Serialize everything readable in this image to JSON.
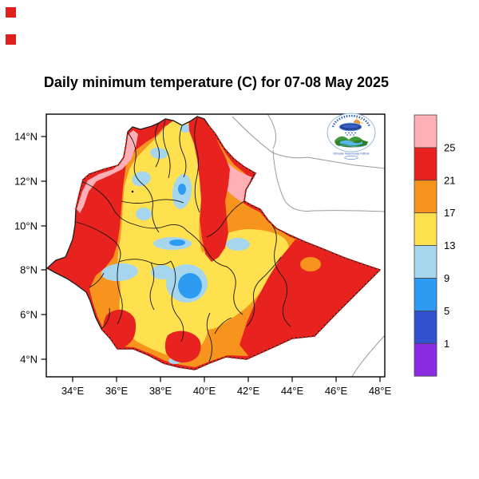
{
  "title": "Daily minimum temperature (C) for 07-08 May 2025",
  "axes": {
    "x_ticks": [
      "34°E",
      "36°E",
      "38°E",
      "40°E",
      "42°E",
      "44°E",
      "46°E",
      "48°E"
    ],
    "y_ticks": [
      "14°N",
      "12°N",
      "10°N",
      "8°N",
      "6°N",
      "4°N"
    ]
  },
  "legend": {
    "labels": [
      "25",
      "21",
      "17",
      "13",
      "9",
      "5",
      "1"
    ],
    "colors": [
      "#ffb0b6",
      "#e8231f",
      "#f7941e",
      "#ffe14f",
      "#a6d6ee",
      "#2e9bf2",
      "#3052cf",
      "#8b2be2"
    ]
  },
  "logo": {
    "caption": "Ethiopian Meteorology Institute"
  },
  "colors": {
    "pink_gt25": "#ffb0b6",
    "red_21_25": "#e8231f",
    "orange_17_21": "#f7941e",
    "yellow_13_17": "#ffe14f",
    "lightblue_9_13": "#a6d6ee",
    "blue_5_9": "#2e9bf2",
    "royal_1_5": "#3052cf",
    "purple_lt1": "#8b2be2",
    "neighbor_border_gray": "#9a9a9a",
    "admin_border_black": "#141414"
  },
  "chart_data": {
    "type": "heatmap",
    "title": "Daily minimum temperature (C) for 07-08 May 2025",
    "variable": "daily minimum temperature",
    "units": "°C",
    "date": "07-08 May 2025",
    "region": "Ethiopia",
    "legend_position": "right",
    "grid": false,
    "x_axis": {
      "ticks": [
        "34°E",
        "36°E",
        "38°E",
        "40°E",
        "42°E",
        "44°E",
        "46°E",
        "48°E"
      ],
      "range": [
        "32.8°E",
        "48.2°E"
      ]
    },
    "y_axis": {
      "ticks": [
        "4°N",
        "6°N",
        "8°N",
        "10°N",
        "12°N",
        "14°N"
      ],
      "range": [
        "3.2°N",
        "15.0°N"
      ]
    },
    "color_scale": [
      {
        "min": 25,
        "max": null,
        "color": "#ffb0b6"
      },
      {
        "min": 21,
        "max": 25,
        "color": "#e8231f"
      },
      {
        "min": 17,
        "max": 21,
        "color": "#f7941e"
      },
      {
        "min": 13,
        "max": 17,
        "color": "#ffe14f"
      },
      {
        "min": 9,
        "max": 13,
        "color": "#a6d6ee"
      },
      {
        "min": 5,
        "max": 9,
        "color": "#2e9bf2"
      },
      {
        "min": 1,
        "max": 5,
        "color": "#3052cf"
      },
      {
        "min": null,
        "max": 1,
        "color": "#8b2be2"
      }
    ],
    "legend_labels": [
      "25",
      "21",
      "17",
      "13",
      "9",
      "5",
      "1"
    ],
    "observed_regions": [
      {
        "area": "western border lowlands and northwest block",
        "value_c": "21-25"
      },
      {
        "area": "far northwest border strip",
        "value_c": ">25"
      },
      {
        "area": "Afar / Danakil depression (northeast)",
        "value_c": ">25 with 21-25 rim"
      },
      {
        "area": "eastern escarpment strip near 40°E, 9-14.5°N",
        "value_c": "21-25"
      },
      {
        "area": "central and eastern highlands",
        "value_c": "13-17"
      },
      {
        "area": "scattered highland cores",
        "value_c": "9-13"
      },
      {
        "area": "rift valley core near 38.5°E, 7.5°N",
        "value_c": "5-9"
      },
      {
        "area": "southeastern Ogaden and eastern tip",
        "value_c": "21-25"
      },
      {
        "area": "southern border pockets",
        "value_c": "21-25"
      },
      {
        "area": "transition bands around highlands",
        "value_c": "17-21"
      }
    ]
  }
}
